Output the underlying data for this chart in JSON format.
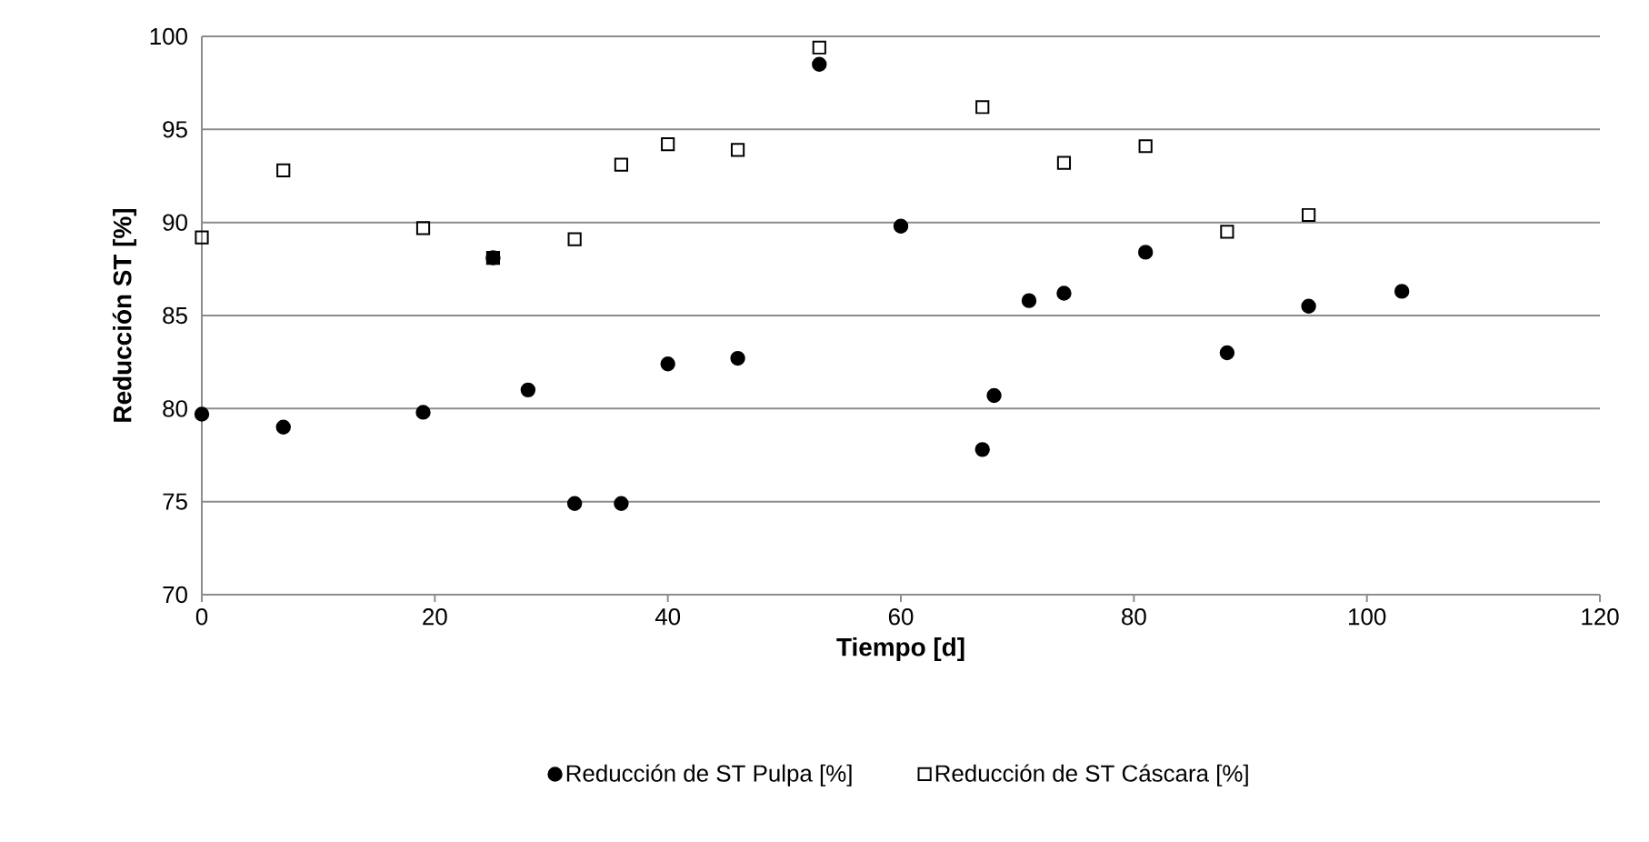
{
  "chart_data": {
    "type": "scatter",
    "xlabel": "Tiempo [d]",
    "ylabel": "Reducción ST [%]",
    "xlim": [
      0,
      120
    ],
    "xticks": [
      0,
      20,
      40,
      60,
      80,
      100,
      120
    ],
    "ylim": [
      70,
      100
    ],
    "yticks": [
      70,
      75,
      80,
      85,
      90,
      95,
      100
    ],
    "grid": "y",
    "legend": "bottom",
    "series": [
      {
        "name": "Reducción de ST Pulpa [%]",
        "color": "#000000",
        "marker": "circle",
        "x": [
          0,
          7,
          19,
          25,
          28,
          32,
          36,
          40,
          46,
          53,
          60,
          67,
          68,
          71,
          74,
          81,
          88,
          95,
          103
        ],
        "values": [
          79.7,
          79.0,
          79.8,
          88.1,
          81.0,
          74.9,
          74.9,
          82.4,
          82.7,
          98.5,
          89.8,
          77.8,
          80.7,
          85.8,
          86.2,
          88.4,
          83.0,
          85.5,
          86.3
        ]
      },
      {
        "name": "Reducción de ST Cáscara [%]",
        "color": "#000000",
        "marker": "square",
        "x": [
          0,
          7,
          19,
          25,
          32,
          36,
          40,
          46,
          53,
          67,
          74,
          81,
          88,
          95
        ],
        "values": [
          89.2,
          92.8,
          89.7,
          88.1,
          89.1,
          93.1,
          94.2,
          93.9,
          99.4,
          96.2,
          93.2,
          94.1,
          89.5,
          90.4
        ]
      }
    ]
  }
}
